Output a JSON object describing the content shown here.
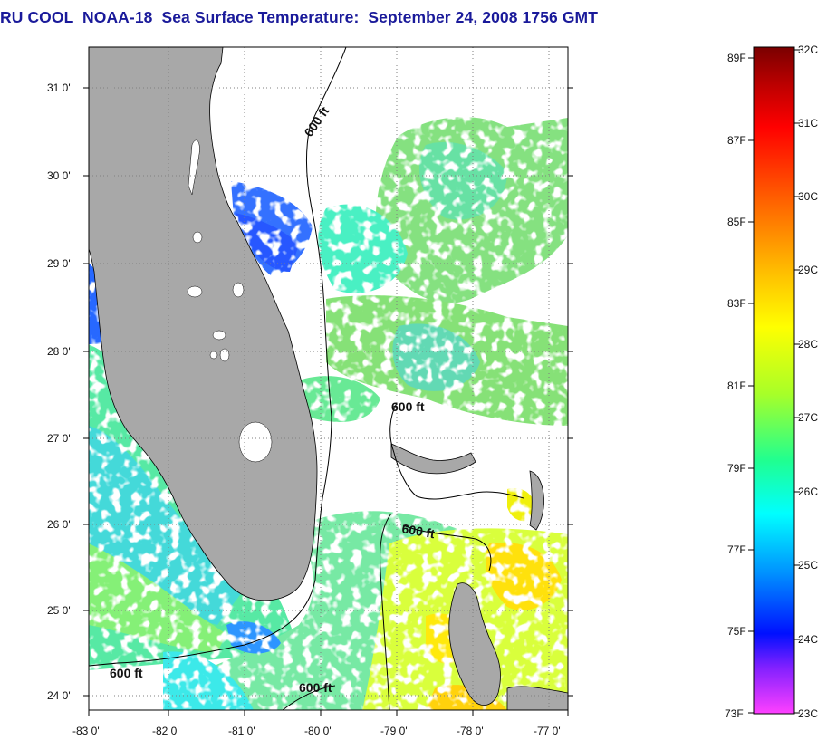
{
  "title": "RU COOL  NOAA-18  Sea Surface Temperature:  September 24, 2008 1756 GMT",
  "map": {
    "lon_labels": [
      "-83 0'",
      "-82 0'",
      "-81 0'",
      "-80 0'",
      "-79 0'",
      "-78 0'",
      "-77 0'"
    ],
    "lat_labels": [
      "31 0'",
      "30 0'",
      "29 0'",
      "28 0'",
      "27 0'",
      "26 0'",
      "25 0'",
      "24 0'"
    ],
    "contour_labels": [
      "600 ft",
      "600 ft",
      "600 ft",
      "600 ft",
      "600 ft"
    ],
    "colors": {
      "land": "#a8a8a8",
      "clouds": "#ffffff",
      "grid": "#7f7f7f"
    }
  },
  "colorbar": {
    "fahrenheit": [
      "89F",
      "87F",
      "85F",
      "83F",
      "81F",
      "79F",
      "77F",
      "75F",
      "73F"
    ],
    "celsius": [
      "32C",
      "31C",
      "30C",
      "29C",
      "28C",
      "27C",
      "26C",
      "25C",
      "24C",
      "23C"
    ],
    "gradient": [
      "#7a0000",
      "#d40000",
      "#ff3000",
      "#ff7a00",
      "#ffc400",
      "#ffff00",
      "#9aff30",
      "#30ffa0",
      "#00ffff",
      "#0080ff",
      "#0010ff",
      "#8010ff",
      "#ff40ff"
    ]
  }
}
